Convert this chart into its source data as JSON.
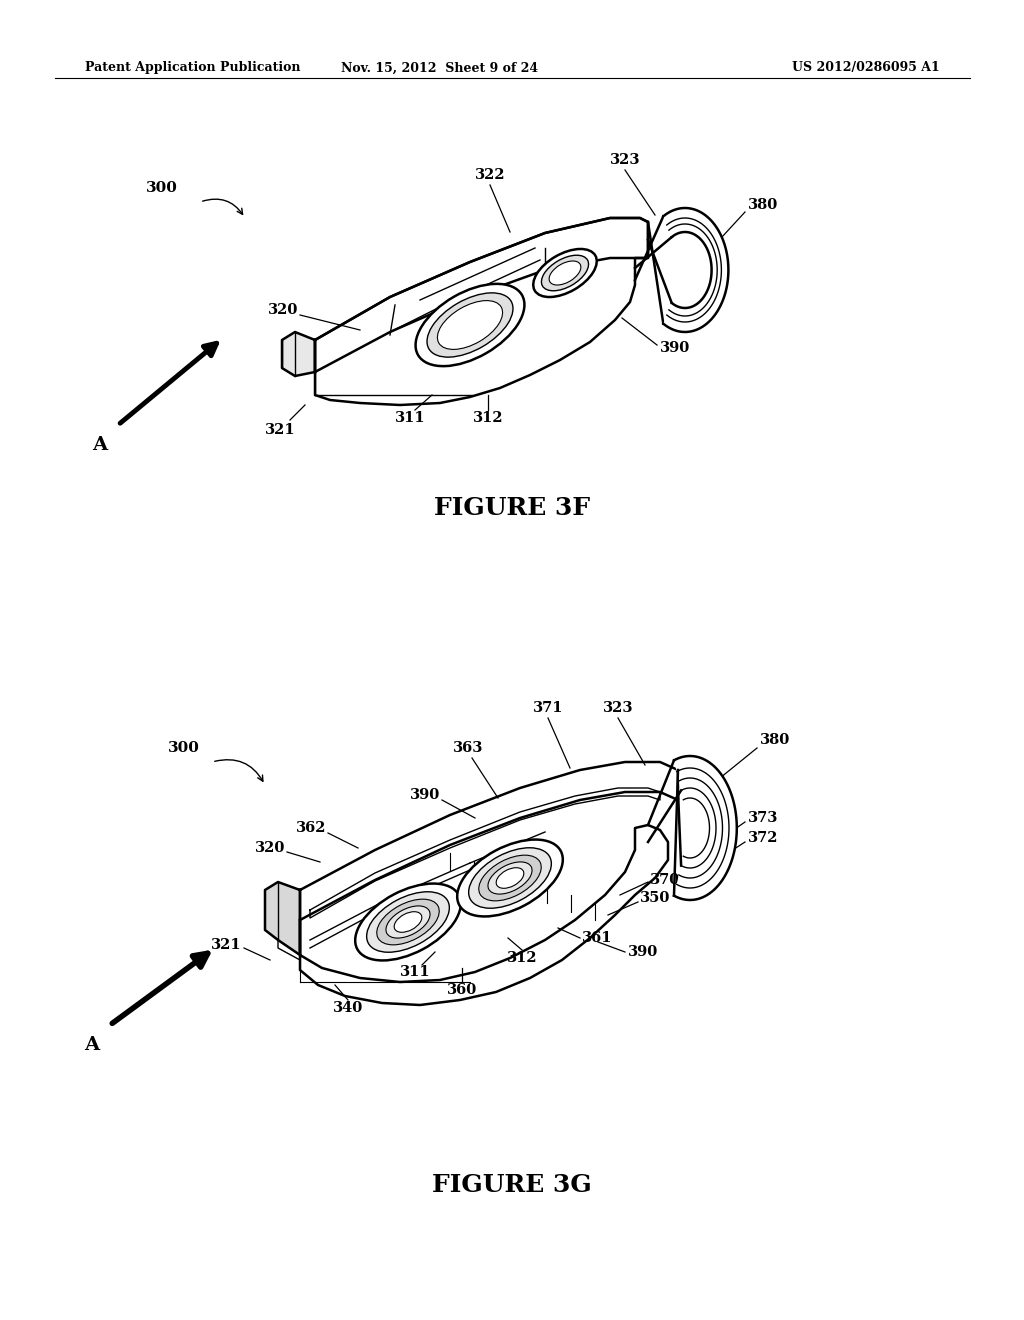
{
  "page_title_left": "Patent Application Publication",
  "page_title_center": "Nov. 15, 2012  Sheet 9 of 24",
  "page_title_right": "US 2012/0286095 A1",
  "figure1_caption": "FIGURE 3F",
  "figure2_caption": "FIGURE 3G",
  "bg_color": "#ffffff",
  "header_font_size": 9,
  "caption_font_size": 18,
  "label_font_size": 10.5
}
